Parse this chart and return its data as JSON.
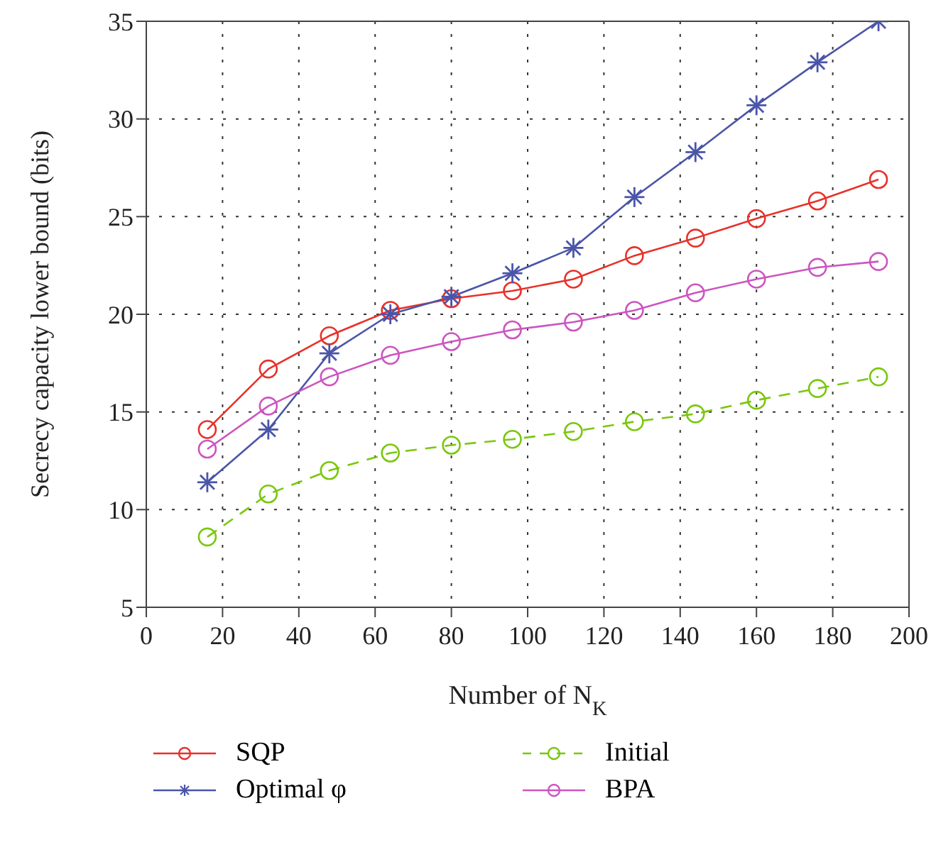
{
  "chart_data": {
    "type": "line",
    "xlabel": "Number of N$_{K}$",
    "ylabel": "Secrecy capacity lower bound (bits)",
    "x": [
      16,
      32,
      48,
      64,
      80,
      96,
      112,
      128,
      144,
      160,
      176,
      192
    ],
    "series": [
      {
        "name": "SQP",
        "color": "#e8312a",
        "marker": "circle",
        "line_style": "solid",
        "values": [
          14.1,
          17.2,
          18.9,
          20.2,
          20.8,
          21.2,
          21.8,
          23.0,
          23.9,
          24.9,
          25.8,
          26.9
        ]
      },
      {
        "name": "Optimal φ",
        "color": "#4a55a8",
        "marker": "cross",
        "line_style": "solid",
        "values": [
          11.4,
          14.1,
          18.0,
          20.0,
          20.9,
          22.1,
          23.4,
          26.0,
          28.3,
          30.7,
          32.9,
          35.0
        ]
      },
      {
        "name": "Initial",
        "color": "#7ac70c",
        "marker": "circle",
        "line_style": "dashed",
        "values": [
          8.6,
          10.8,
          12.0,
          12.9,
          13.3,
          13.6,
          14.0,
          14.5,
          14.9,
          15.6,
          16.2,
          16.8
        ]
      },
      {
        "name": "BPA",
        "color": "#cc55c0",
        "marker": "circle",
        "line_style": "solid",
        "values": [
          13.1,
          15.3,
          16.8,
          17.9,
          18.6,
          19.2,
          19.6,
          20.2,
          21.1,
          21.8,
          22.4,
          22.7
        ]
      }
    ],
    "xlim": [
      0,
      200
    ],
    "xticks": [
      0,
      20,
      40,
      60,
      80,
      100,
      120,
      140,
      160,
      180,
      200
    ],
    "ylim": [
      5,
      35
    ],
    "yticks": [
      5,
      10,
      15,
      20,
      25,
      30,
      35
    ],
    "grid": true,
    "legend": "bottom"
  }
}
